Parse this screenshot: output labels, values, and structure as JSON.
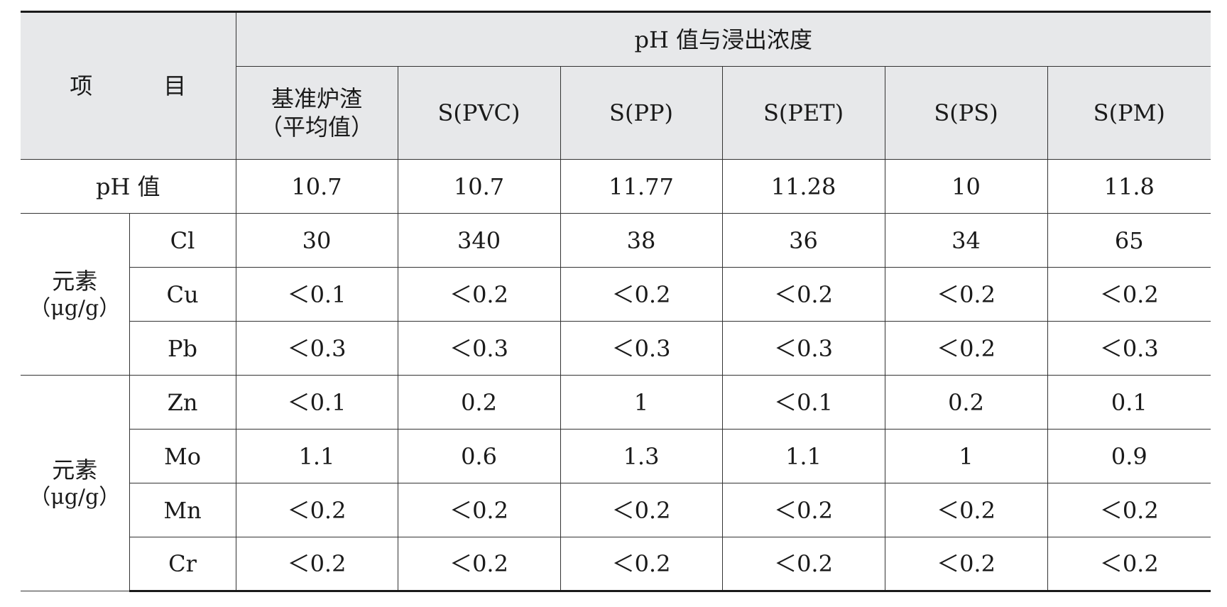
{
  "header": {
    "item_label": "项　目",
    "group_label": "pH 值与浸出浓度",
    "columns": [
      "基准炉渣",
      "（平均值）",
      "S(PVC)",
      "S(PP)",
      "S(PET)",
      "S(PS)",
      "S(PM)"
    ]
  },
  "ph_row": {
    "label": "pH 值",
    "values": [
      "10.7",
      "10.7",
      "11.77",
      "11.28",
      "10",
      "11.8"
    ]
  },
  "groups": [
    {
      "label_line1": "元素",
      "label_line2": "（μg/g）",
      "rows": [
        {
          "element": "Cl",
          "values": [
            "30",
            "340",
            "38",
            "36",
            "34",
            "65"
          ]
        },
        {
          "element": "Cu",
          "values": [
            "＜0.1",
            "＜0.2",
            "＜0.2",
            "＜0.2",
            "＜0.2",
            "＜0.2"
          ]
        },
        {
          "element": "Pb",
          "values": [
            "＜0.3",
            "＜0.3",
            "＜0.3",
            "＜0.3",
            "＜0.2",
            "＜0.3"
          ]
        }
      ]
    },
    {
      "label_line1": "元素",
      "label_line2": "（μg/g）",
      "rows": [
        {
          "element": "Zn",
          "values": [
            "＜0.1",
            "0.2",
            "1",
            "＜0.1",
            "0.2",
            "0.1"
          ]
        },
        {
          "element": "Mo",
          "values": [
            "1.1",
            "0.6",
            "1.3",
            "1.1",
            "1",
            "0.9"
          ]
        },
        {
          "element": "Mn",
          "values": [
            "＜0.2",
            "＜0.2",
            "＜0.2",
            "＜0.2",
            "＜0.2",
            "＜0.2"
          ]
        },
        {
          "element": "Cr",
          "values": [
            "＜0.2",
            "＜0.2",
            "＜0.2",
            "＜0.2",
            "＜0.2",
            "＜0.2"
          ]
        }
      ]
    }
  ]
}
